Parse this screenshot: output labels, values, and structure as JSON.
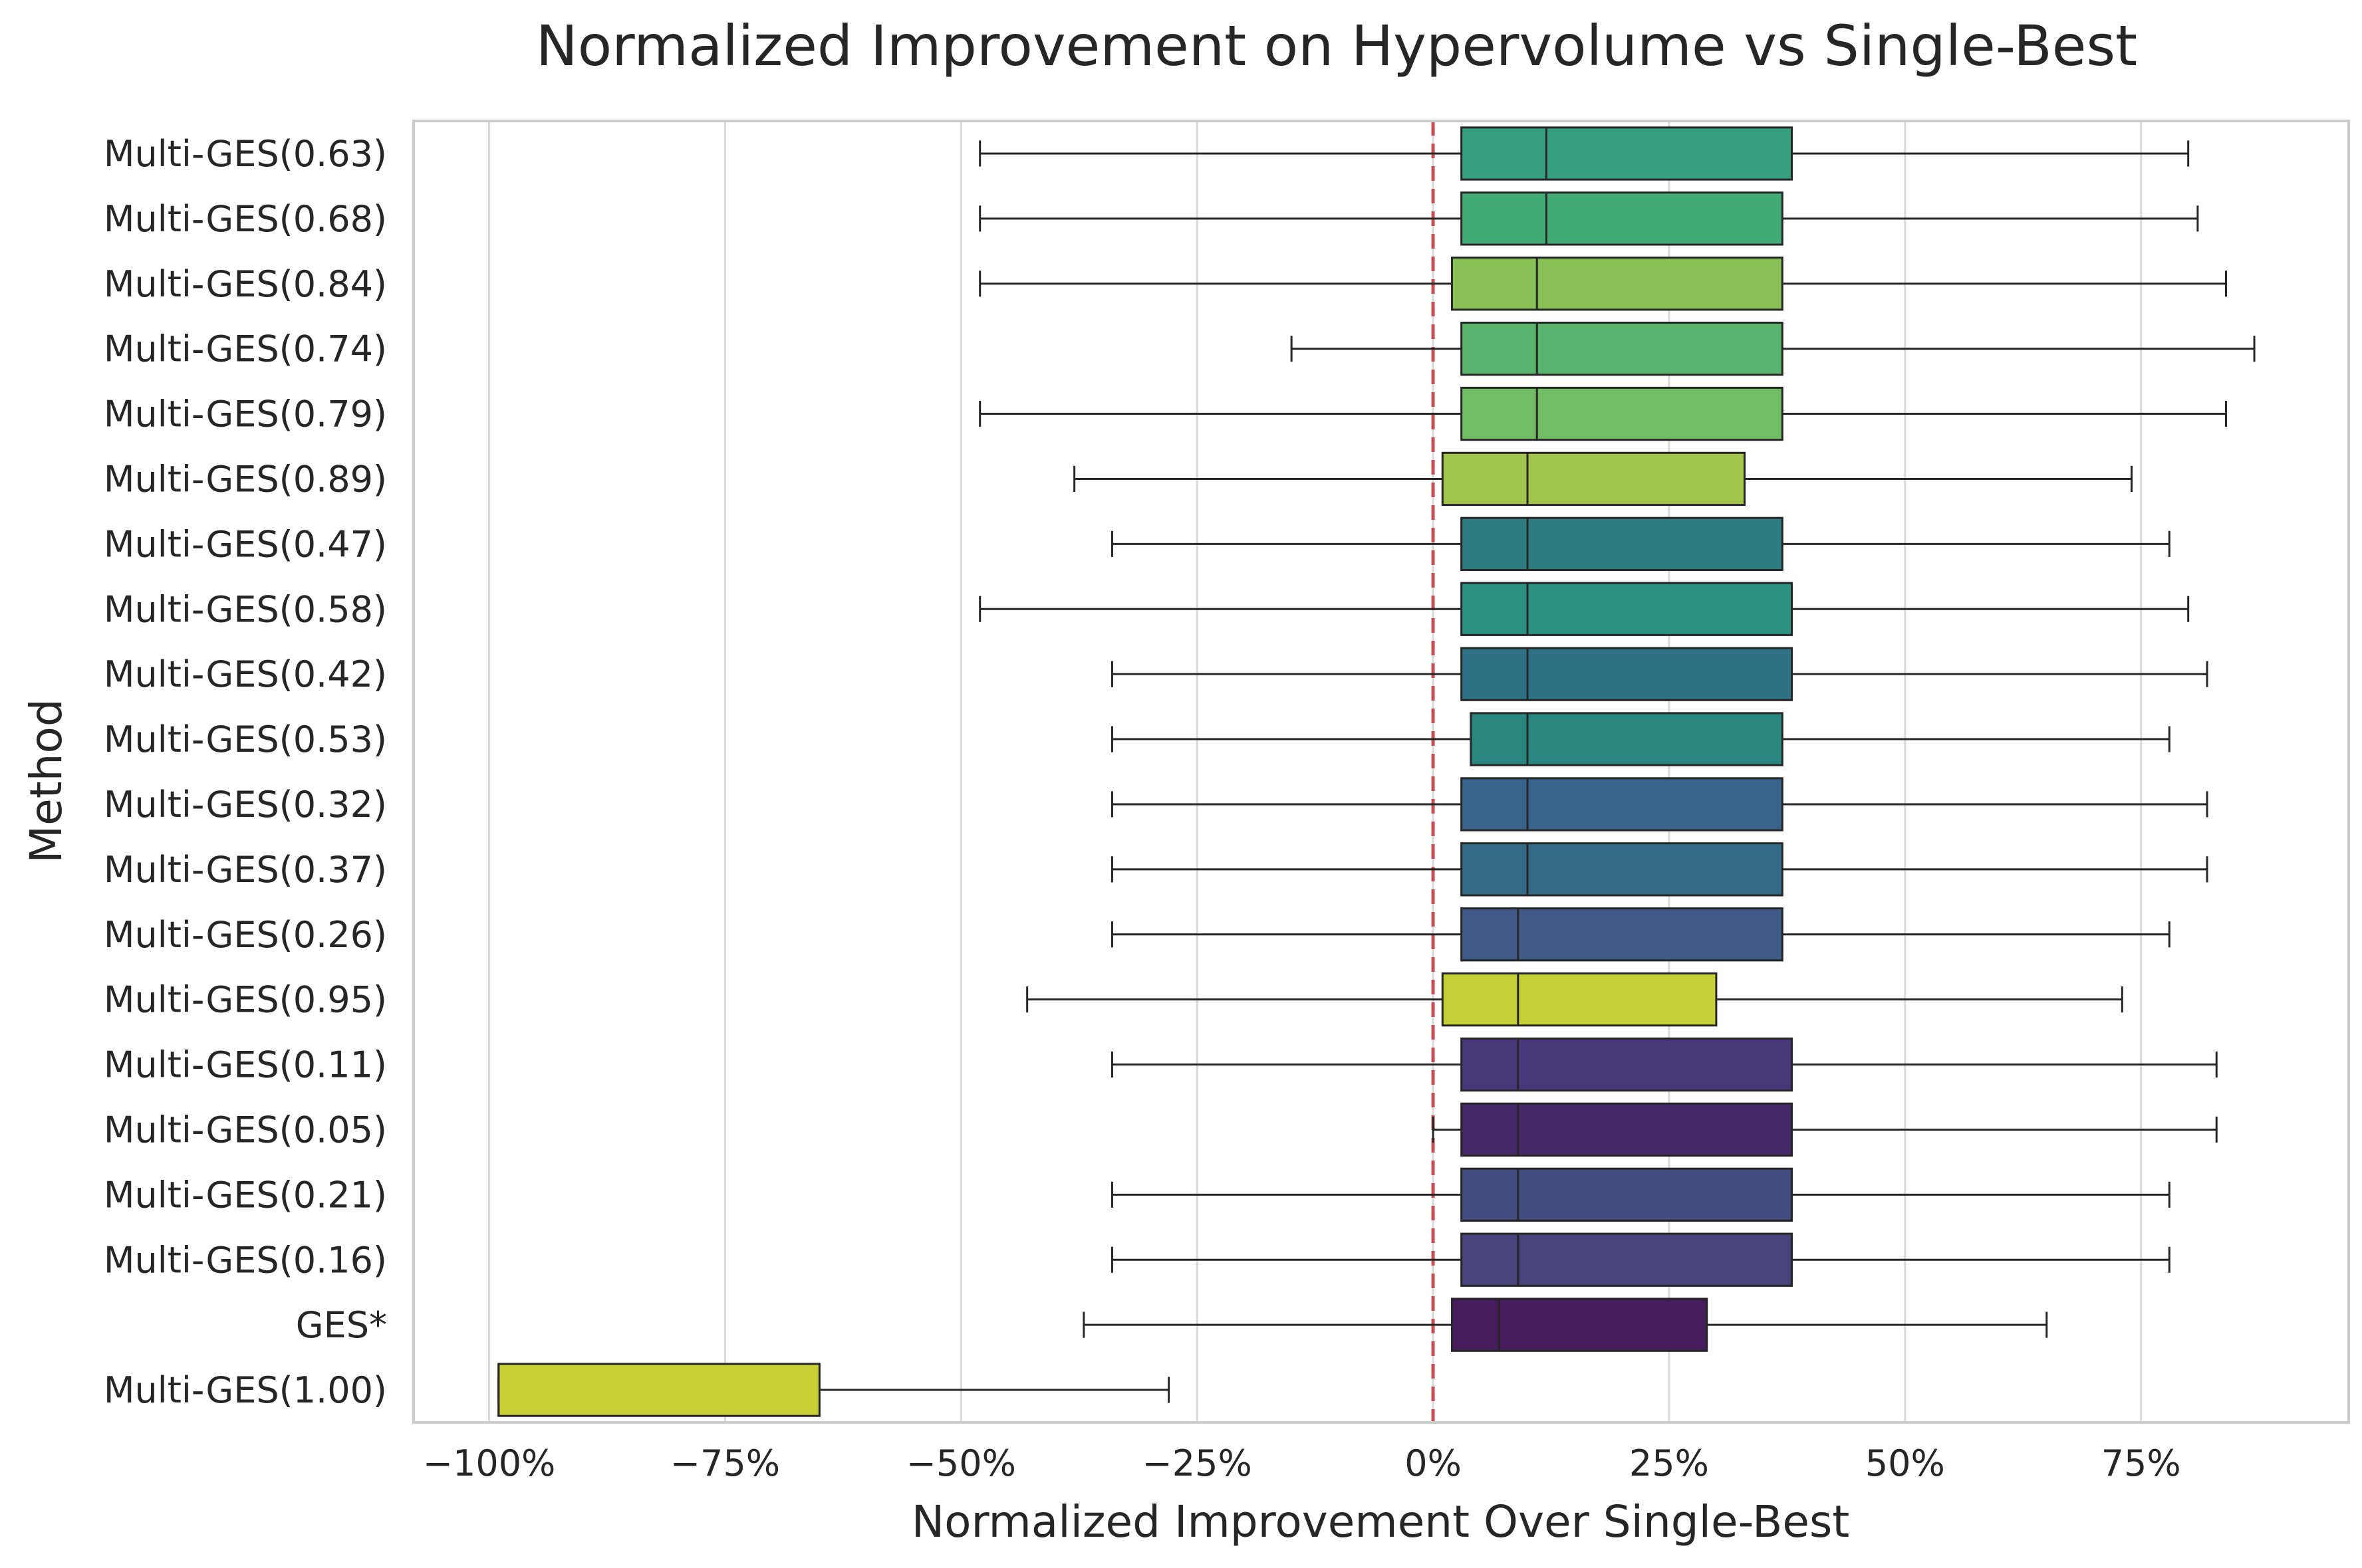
{
  "chart_data": {
    "type": "boxplot",
    "orientation": "horizontal",
    "title": "Normalized Improvement on Hypervolume vs Single-Best",
    "xlabel": "Normalized Improvement Over Single-Best",
    "ylabel": "Method",
    "xlim": [
      -1.08,
      0.97
    ],
    "x_ticks": [
      -1.0,
      -0.75,
      -0.5,
      -0.25,
      0.0,
      0.25,
      0.5,
      0.75
    ],
    "x_tick_labels": [
      "−100%",
      "−75%",
      "−50%",
      "−25%",
      "0%",
      "25%",
      "50%",
      "75%"
    ],
    "grid": "vertical",
    "reference_line": {
      "x": 0.0,
      "style": "dashed",
      "color": "#c44e52"
    },
    "categories": [
      "Multi-GES(0.63)",
      "Multi-GES(0.68)",
      "Multi-GES(0.84)",
      "Multi-GES(0.74)",
      "Multi-GES(0.79)",
      "Multi-GES(0.89)",
      "Multi-GES(0.47)",
      "Multi-GES(0.58)",
      "Multi-GES(0.42)",
      "Multi-GES(0.53)",
      "Multi-GES(0.32)",
      "Multi-GES(0.37)",
      "Multi-GES(0.26)",
      "Multi-GES(0.95)",
      "Multi-GES(0.11)",
      "Multi-GES(0.05)",
      "Multi-GES(0.21)",
      "Multi-GES(0.16)",
      "GES*",
      "Multi-GES(1.00)"
    ],
    "boxes": [
      {
        "label": "Multi-GES(0.63)",
        "whisker_low": -0.48,
        "q1": 0.03,
        "median": 0.12,
        "q3": 0.38,
        "whisker_high": 0.8,
        "color": "#35a07e"
      },
      {
        "label": "Multi-GES(0.68)",
        "whisker_low": -0.48,
        "q1": 0.03,
        "median": 0.12,
        "q3": 0.37,
        "whisker_high": 0.81,
        "color": "#42ab75"
      },
      {
        "label": "Multi-GES(0.84)",
        "whisker_low": -0.48,
        "q1": 0.02,
        "median": 0.11,
        "q3": 0.37,
        "whisker_high": 0.84,
        "color": "#88c157"
      },
      {
        "label": "Multi-GES(0.74)",
        "whisker_low": -0.15,
        "q1": 0.03,
        "median": 0.11,
        "q3": 0.37,
        "whisker_high": 0.87,
        "color": "#58b36c"
      },
      {
        "label": "Multi-GES(0.79)",
        "whisker_low": -0.48,
        "q1": 0.03,
        "median": 0.11,
        "q3": 0.37,
        "whisker_high": 0.84,
        "color": "#70bd64"
      },
      {
        "label": "Multi-GES(0.89)",
        "whisker_low": -0.38,
        "q1": 0.01,
        "median": 0.1,
        "q3": 0.33,
        "whisker_high": 0.74,
        "color": "#a1c64b"
      },
      {
        "label": "Multi-GES(0.47)",
        "whisker_low": -0.34,
        "q1": 0.03,
        "median": 0.1,
        "q3": 0.37,
        "whisker_high": 0.78,
        "color": "#2d7c82"
      },
      {
        "label": "Multi-GES(0.58)",
        "whisker_low": -0.48,
        "q1": 0.03,
        "median": 0.1,
        "q3": 0.38,
        "whisker_high": 0.8,
        "color": "#2b9180"
      },
      {
        "label": "Multi-GES(0.42)",
        "whisker_low": -0.34,
        "q1": 0.03,
        "median": 0.1,
        "q3": 0.38,
        "whisker_high": 0.82,
        "color": "#2e7185"
      },
      {
        "label": "Multi-GES(0.53)",
        "whisker_low": -0.34,
        "q1": 0.04,
        "median": 0.1,
        "q3": 0.37,
        "whisker_high": 0.78,
        "color": "#29867f"
      },
      {
        "label": "Multi-GES(0.32)",
        "whisker_low": -0.34,
        "q1": 0.03,
        "median": 0.1,
        "q3": 0.37,
        "whisker_high": 0.82,
        "color": "#38638a"
      },
      {
        "label": "Multi-GES(0.37)",
        "whisker_low": -0.34,
        "q1": 0.03,
        "median": 0.1,
        "q3": 0.37,
        "whisker_high": 0.82,
        "color": "#336b87"
      },
      {
        "label": "Multi-GES(0.26)",
        "whisker_low": -0.34,
        "q1": 0.03,
        "median": 0.09,
        "q3": 0.37,
        "whisker_high": 0.78,
        "color": "#405a87"
      },
      {
        "label": "Multi-GES(0.95)",
        "whisker_low": -0.43,
        "q1": 0.01,
        "median": 0.09,
        "q3": 0.3,
        "whisker_high": 0.73,
        "color": "#c4cf35"
      },
      {
        "label": "Multi-GES(0.11)",
        "whisker_low": -0.34,
        "q1": 0.03,
        "median": 0.09,
        "q3": 0.38,
        "whisker_high": 0.83,
        "color": "#48387a"
      },
      {
        "label": "Multi-GES(0.05)",
        "whisker_low": 0.0,
        "q1": 0.03,
        "median": 0.09,
        "q3": 0.38,
        "whisker_high": 0.83,
        "color": "#442767"
      },
      {
        "label": "Multi-GES(0.21)",
        "whisker_low": -0.34,
        "q1": 0.03,
        "median": 0.09,
        "q3": 0.38,
        "whisker_high": 0.78,
        "color": "#414c80"
      },
      {
        "label": "Multi-GES(0.16)",
        "whisker_low": -0.34,
        "q1": 0.03,
        "median": 0.09,
        "q3": 0.38,
        "whisker_high": 0.78,
        "color": "#48427d"
      },
      {
        "label": "GES*",
        "whisker_low": -0.37,
        "q1": 0.02,
        "median": 0.07,
        "q3": 0.29,
        "whisker_high": 0.65,
        "color": "#471c5c"
      },
      {
        "label": "Multi-GES(1.00)",
        "whisker_low": -0.99,
        "q1": -0.99,
        "median": -0.99,
        "q3": -0.65,
        "whisker_high": -0.28,
        "color": "#c8cf34"
      }
    ]
  }
}
